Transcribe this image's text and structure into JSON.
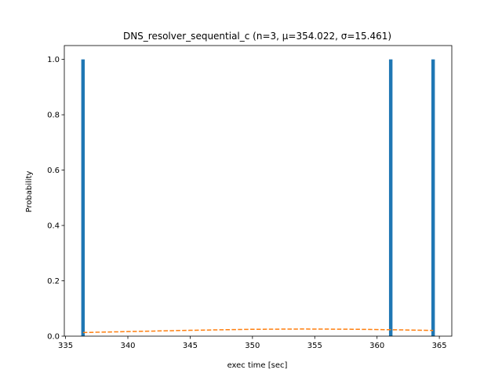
{
  "chart_data": {
    "type": "bar",
    "title": "DNS_resolver_sequential_c (n=3, μ=354.022, σ=15.461)",
    "xlabel": "exec time [sec]",
    "ylabel": "Probability",
    "xlim": [
      334.9,
      366.0
    ],
    "ylim": [
      0,
      1.05
    ],
    "xticks": [
      335,
      340,
      345,
      350,
      355,
      360,
      365
    ],
    "yticks": [
      0.0,
      0.2,
      0.4,
      0.6,
      0.8,
      1.0
    ],
    "xtick_labels": [
      "335",
      "340",
      "345",
      "350",
      "355",
      "360",
      "365"
    ],
    "ytick_labels": [
      "0.0",
      "0.2",
      "0.4",
      "0.6",
      "0.8",
      "1.0"
    ],
    "bar_width": 0.28,
    "grid": false,
    "series": [
      {
        "type": "bar",
        "color": "#1f77b4",
        "x": [
          336.4,
          361.1,
          364.5
        ],
        "values": [
          1.0,
          1.0,
          1.0
        ]
      },
      {
        "type": "line",
        "style": "dashed",
        "color": "#ff7f0e",
        "x": [
          336.4,
          340,
          345,
          350,
          354.022,
          358,
          361.1,
          364.5
        ],
        "values": [
          0.0131,
          0.0165,
          0.0212,
          0.0248,
          0.0258,
          0.025,
          0.0233,
          0.0207
        ]
      }
    ]
  }
}
